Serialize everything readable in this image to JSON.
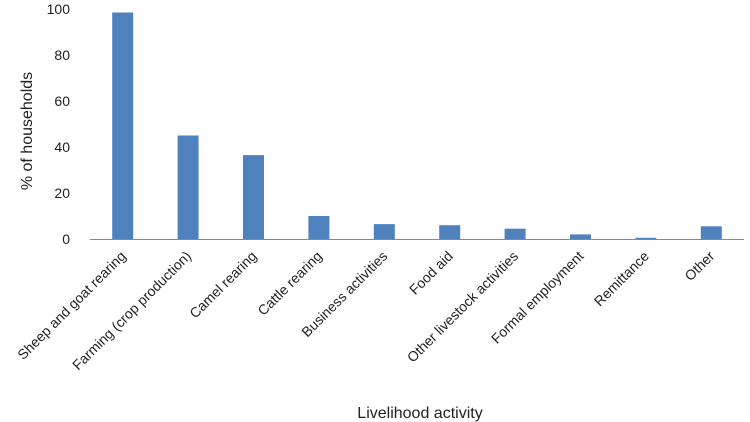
{
  "chart_data": {
    "type": "bar",
    "title": "",
    "xlabel": "Livelihood activity",
    "ylabel": "% of households",
    "ylim": [
      0,
      100
    ],
    "yticks": [
      0,
      20,
      40,
      60,
      80,
      100
    ],
    "grid": false,
    "legend": "none",
    "bar_color": "#4f81bd",
    "categories": [
      "Sheep and goat rearing",
      "Farming (crop production)",
      "Camel rearing",
      "Cattle rearing",
      "Business activities",
      "Food aid",
      "Other livestock activities",
      "Formal employment",
      "Remittance",
      "Other"
    ],
    "values": [
      98.5,
      45,
      36.5,
      10,
      6.5,
      6,
      4.5,
      2,
      0.5,
      5.5
    ]
  }
}
